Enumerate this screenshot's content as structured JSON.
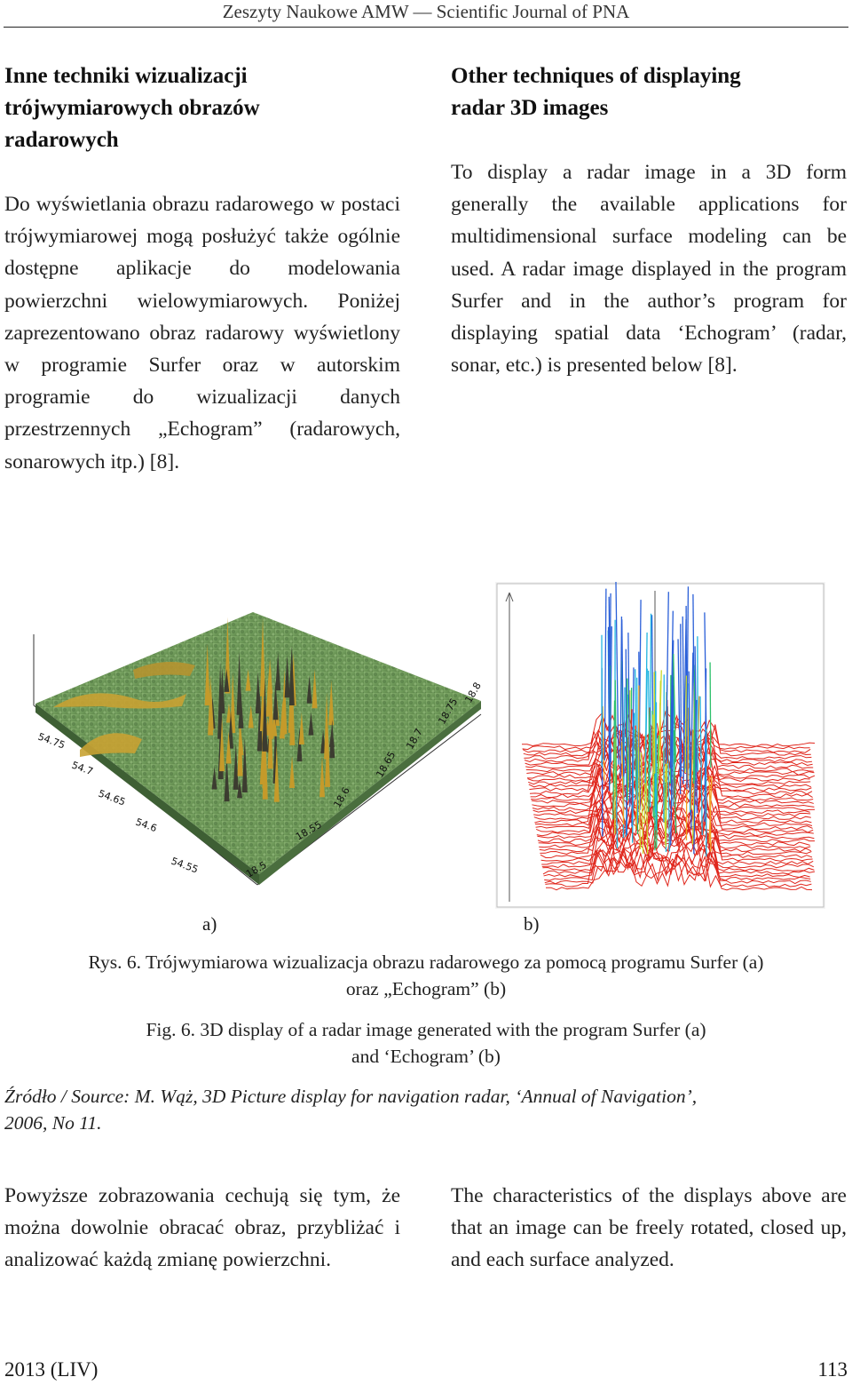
{
  "header": {
    "running_title": "Zeszyty Naukowe AMW — Scientific Journal of PNA"
  },
  "left": {
    "heading": [
      "Inne techniki wizualizacji",
      "trójwymiarowych obrazów",
      "radarowych"
    ],
    "para1": "Do wyświetlania obrazu radarowego w postaci trójwymiarowej mogą posłużyć także ogólnie dostępne aplikacje do modelowania powierzchni wielowymiarowych. Poniżej zaprezentowano obraz radarowy wyświetlony w programie Surfer oraz w autorskim programie do wizualizacji danych przestrzennych „Echogram” (radarowych, sonarowych itp.) [8].",
    "para2": "Powyższe zobrazowania cechują się tym, że można dowolnie obracać obraz, przybliżać i analizować każdą zmianę powierzchni."
  },
  "right": {
    "heading": [
      "Other techniques of displaying",
      "radar 3D images"
    ],
    "para1": "To display a radar image in a 3D form generally the available applications for multidimensional surface modeling can be used. A radar image displayed in the program Surfer and in the author’s program for displaying spatial data ‘Echogram’ (radar, sonar, etc.) is presented below [8].",
    "para2": "The characteristics of the displays above are that an image can be freely rotated, closed up, and each surface analyzed."
  },
  "figure": {
    "label_a": "a)",
    "label_b": "b)",
    "axis_a_left": [
      "54.75",
      "54.7",
      "54.65",
      "54.6",
      "54.55"
    ],
    "axis_a_bottom": [
      "18.5",
      "18.55",
      "18.6",
      "18.65",
      "18.7",
      "18.75",
      "18.8"
    ],
    "caption_pl_1": "Rys. 6. Trójwymiarowa wizualizacja obrazu radarowego za pomocą programu Surfer (a)",
    "caption_pl_2": "oraz „Echogram” (b)",
    "caption_en_1": "Fig. 6. 3D display of a radar image generated with the program Surfer (a)",
    "caption_en_2": "and ‘Echogram’ (b)",
    "source_1": "Źródło / Source: M. Wąż, 3D Picture display for navigation radar, ‘Annual of Navigation’,",
    "source_2": "2006, No 11.",
    "colors": {
      "surface_green": "#6f9a5a",
      "surface_yellow": "#c8a233",
      "echo_red": "#e0261c",
      "echo_blue": "#2a5fd8"
    }
  },
  "footer": {
    "issue": "2013 (LIV)",
    "page": "113"
  }
}
